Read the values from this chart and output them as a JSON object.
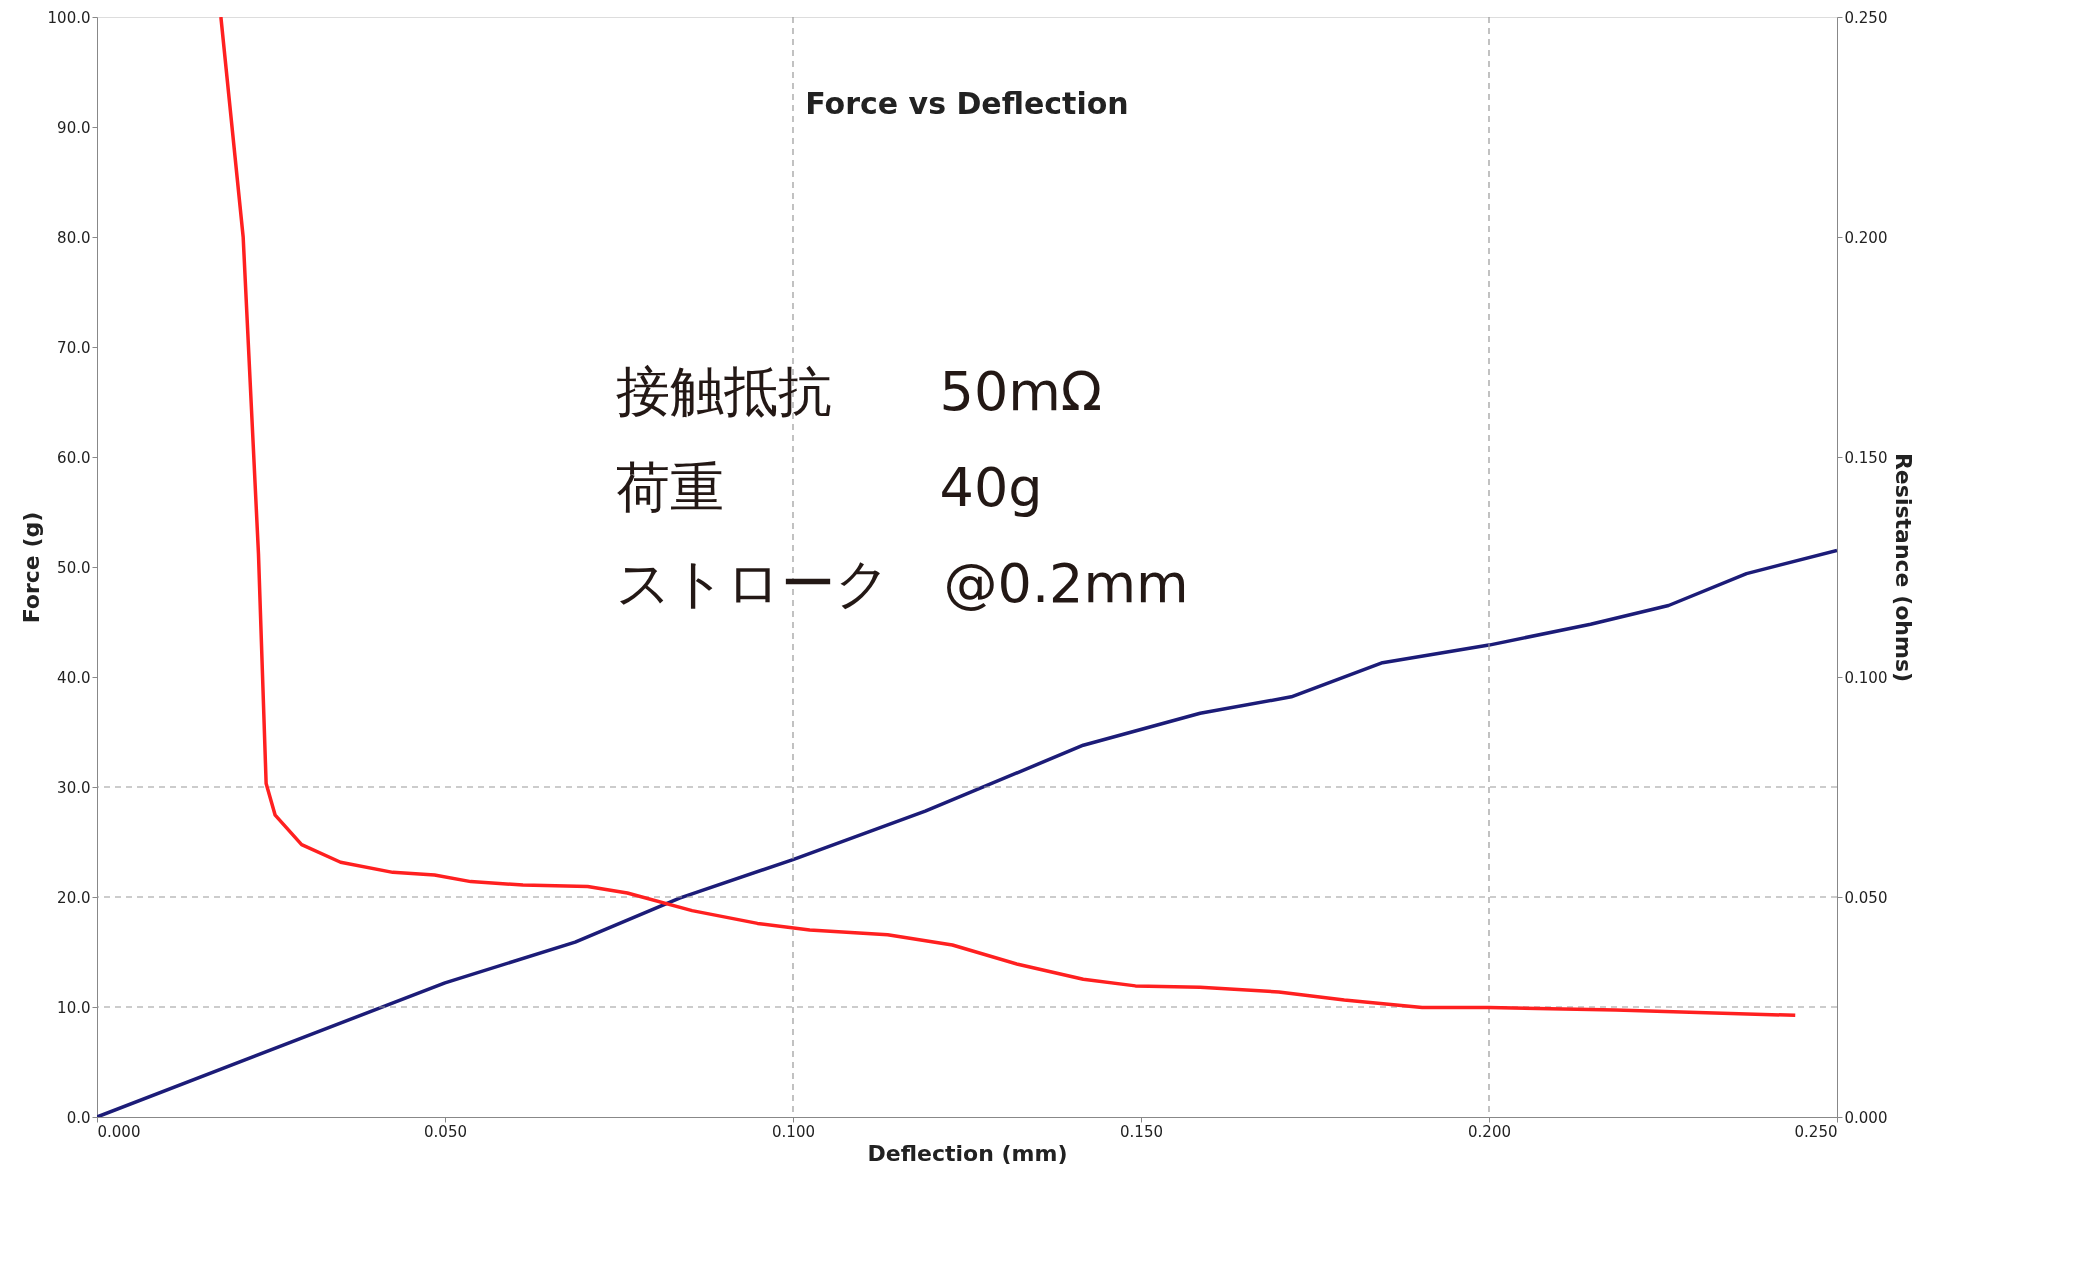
{
  "chart_data": {
    "type": "line",
    "title": "Force vs Deflection",
    "xlabel": "Deflection (mm)",
    "ylabel": "Force (g)",
    "y2label": "Resistance (ohms)",
    "xlim": [
      0,
      0.25
    ],
    "xticks": [
      {
        "value": 0,
        "label": "0.000"
      },
      {
        "value": 0.05,
        "label": "0.050"
      },
      {
        "value": 0.1,
        "label": "0.100"
      },
      {
        "value": 0.15,
        "label": "0.150"
      },
      {
        "value": 0.2,
        "label": "0.200"
      },
      {
        "value": 0.25,
        "label": "0.250"
      }
    ],
    "ylim": [
      0,
      100
    ],
    "yticks": [
      {
        "value": 0,
        "label": "0.0"
      },
      {
        "value": 10,
        "label": "10.0"
      },
      {
        "value": 20,
        "label": "20.0"
      },
      {
        "value": 30,
        "label": "30.0"
      },
      {
        "value": 40,
        "label": "40.0"
      },
      {
        "value": 50,
        "label": "50.0"
      },
      {
        "value": 60,
        "label": "60.0"
      },
      {
        "value": 70,
        "label": "70.0"
      },
      {
        "value": 80,
        "label": "80.0"
      },
      {
        "value": 90,
        "label": "90.0"
      },
      {
        "value": 100,
        "label": "100.0"
      }
    ],
    "y2lim": [
      0,
      0.25
    ],
    "y2ticks": [
      {
        "value": 0,
        "label": "0.000"
      },
      {
        "value": 0.05,
        "label": "0.050"
      },
      {
        "value": 0.1,
        "label": "0.100"
      },
      {
        "value": 0.15,
        "label": "0.150"
      },
      {
        "value": 0.2,
        "label": "0.200"
      },
      {
        "value": 0.25,
        "label": "0.250"
      }
    ],
    "grid": false,
    "marker": "none",
    "line_style": "solid",
    "series": [
      {
        "color": "#1c1c78",
        "x": [
          0,
          0.05,
          0.0687,
          0.0837,
          0.1,
          0.119,
          0.1417,
          0.1585,
          0.1716,
          0.1847,
          0.2,
          0.2146,
          0.2258,
          0.237,
          0.25
        ],
        "values": [
          0,
          12.2,
          15.9,
          19.9,
          23.4,
          27.8,
          33.8,
          36.7,
          38.2,
          41.3,
          42.9,
          44.8,
          46.5,
          49.4,
          51.5
        ]
      },
      {
        "color": "#ff2020",
        "axis": "y2",
        "x": [
          0.0178,
          0.021,
          0.0232,
          0.0243,
          0.0256,
          0.0294,
          0.035,
          0.0425,
          0.0485,
          0.0537,
          0.0612,
          0.0705,
          0.0762,
          0.0855,
          0.0949,
          0.1024,
          0.1136,
          0.1229,
          0.1323,
          0.1417,
          0.1492,
          0.1585,
          0.1698,
          0.1792,
          0.1904,
          0.2,
          0.2182,
          0.244
        ],
        "values": [
          0.25,
          0.2,
          0.128,
          0.0758,
          0.0686,
          0.0619,
          0.0579,
          0.0556,
          0.055,
          0.0535,
          0.0527,
          0.0524,
          0.0509,
          0.0469,
          0.044,
          0.0425,
          0.0414,
          0.0391,
          0.0347,
          0.0313,
          0.0298,
          0.0295,
          0.0284,
          0.0266,
          0.0249,
          0.0249,
          0.0243,
          0.0231
        ]
      }
    ],
    "ref_lines": [
      {
        "axis": "y",
        "value": 10,
        "color": "#999999",
        "line_style": "dashed"
      },
      {
        "axis": "y",
        "value": 20,
        "color": "#999999",
        "line_style": "dashed"
      },
      {
        "axis": "y",
        "value": 30,
        "color": "#999999",
        "line_style": "dashed"
      },
      {
        "axis": "x",
        "value": 0.1,
        "color": "#999999",
        "line_style": "dashed"
      },
      {
        "axis": "x",
        "value": 0.2,
        "color": "#999999",
        "line_style": "dashed"
      }
    ],
    "annotations": [
      "接触抵抗　　50mΩ",
      "荷重　　　　40g",
      "ストローク　@0.2mm"
    ]
  }
}
